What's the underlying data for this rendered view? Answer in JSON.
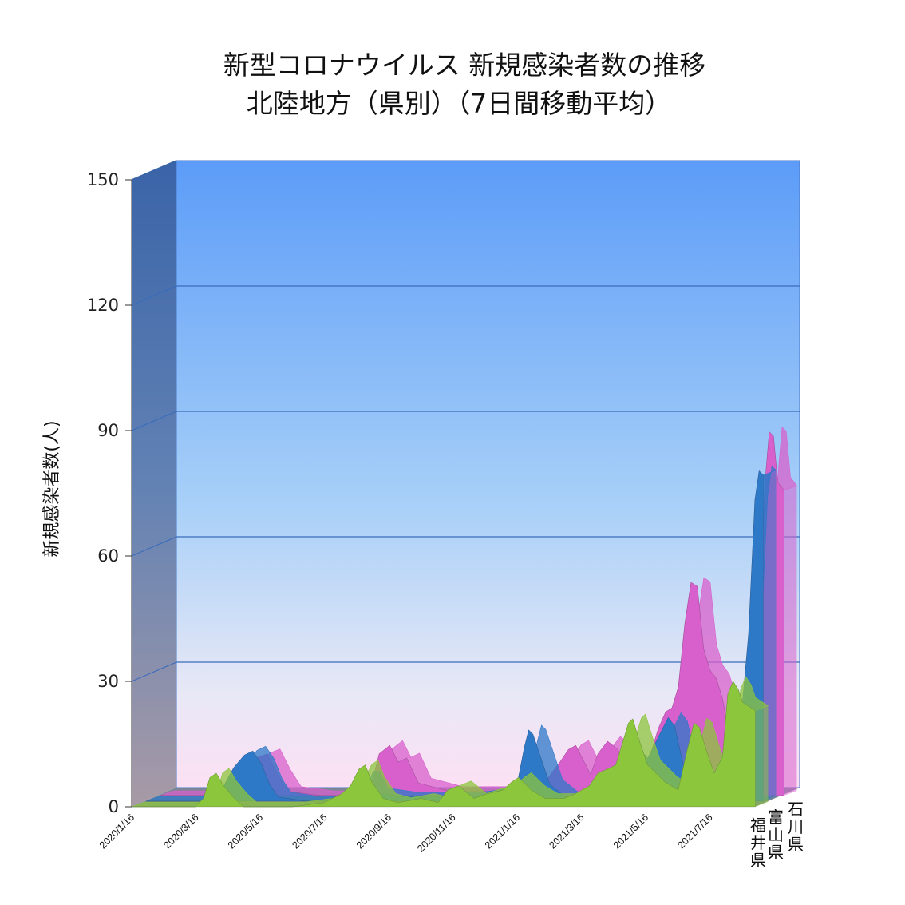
{
  "chart_data": {
    "type": "area",
    "title": "新型コロナウイルス 新規感染者数の推移",
    "subtitle": "北陸地方（県別）（7日間移動平均）",
    "ylabel": "新規感染者数(人)",
    "xlabel": "",
    "ylim": [
      0,
      150
    ],
    "yticks": [
      0,
      30,
      60,
      90,
      120,
      150
    ],
    "grid": true,
    "three_d": true,
    "x_tick_labels": [
      "2020/1/16",
      "2020/3/16",
      "2020/5/16",
      "2020/7/16",
      "2020/9/16",
      "2020/11/16",
      "2021/1/16",
      "2021/3/16",
      "2021/5/16",
      "2021/7/16"
    ],
    "colors": {
      "石川県": "#d860cc",
      "富山県": "#2e78c8",
      "福井県": "#8cc63c"
    },
    "series": [
      {
        "name": "石川県",
        "points": [
          [
            "2020/1/16",
            0
          ],
          [
            "2020/3/16",
            0
          ],
          [
            "2020/4/1",
            3
          ],
          [
            "2020/4/16",
            9
          ],
          [
            "2020/4/26",
            10
          ],
          [
            "2020/5/6",
            5
          ],
          [
            "2020/5/16",
            1
          ],
          [
            "2020/6/16",
            0
          ],
          [
            "2020/7/16",
            0
          ],
          [
            "2020/8/1",
            1
          ],
          [
            "2020/8/10",
            10
          ],
          [
            "2020/8/20",
            12
          ],
          [
            "2020/8/28",
            8
          ],
          [
            "2020/9/5",
            9
          ],
          [
            "2020/9/16",
            3
          ],
          [
            "2020/10/16",
            1
          ],
          [
            "2020/11/16",
            1
          ],
          [
            "2020/12/16",
            1
          ],
          [
            "2021/1/5",
            3
          ],
          [
            "2021/1/16",
            4
          ],
          [
            "2021/1/28",
            8
          ],
          [
            "2021/2/5",
            11
          ],
          [
            "2021/2/12",
            12
          ],
          [
            "2021/2/18",
            9
          ],
          [
            "2021/2/26",
            5
          ],
          [
            "2021/3/5",
            10
          ],
          [
            "2021/3/14",
            13
          ],
          [
            "2021/3/24",
            11
          ],
          [
            "2021/4/3",
            4
          ],
          [
            "2021/4/16",
            5
          ],
          [
            "2021/4/25",
            11
          ],
          [
            "2021/5/1",
            16
          ],
          [
            "2021/5/8",
            20
          ],
          [
            "2021/5/14",
            21
          ],
          [
            "2021/5/20",
            26
          ],
          [
            "2021/5/26",
            41
          ],
          [
            "2021/6/1",
            51
          ],
          [
            "2021/6/7",
            50
          ],
          [
            "2021/6/13",
            35
          ],
          [
            "2021/6/19",
            30
          ],
          [
            "2021/6/25",
            28
          ],
          [
            "2021/7/1",
            23
          ],
          [
            "2021/7/7",
            14
          ],
          [
            "2021/7/13",
            8
          ],
          [
            "2021/7/18",
            4
          ],
          [
            "2021/7/24",
            8
          ],
          [
            "2021/7/31",
            20
          ],
          [
            "2021/8/5",
            45
          ],
          [
            "2021/8/10",
            75
          ],
          [
            "2021/8/14",
            87
          ],
          [
            "2021/8/18",
            86
          ],
          [
            "2021/8/22",
            75
          ],
          [
            "2021/8/28",
            73
          ]
        ]
      },
      {
        "name": "富山県",
        "points": [
          [
            "2020/1/16",
            0
          ],
          [
            "2020/3/16",
            0
          ],
          [
            "2020/3/28",
            3
          ],
          [
            "2020/4/8",
            8
          ],
          [
            "2020/4/18",
            11
          ],
          [
            "2020/4/26",
            12
          ],
          [
            "2020/5/4",
            9
          ],
          [
            "2020/5/12",
            4
          ],
          [
            "2020/5/20",
            1
          ],
          [
            "2020/6/16",
            0
          ],
          [
            "2020/7/16",
            0
          ],
          [
            "2020/7/28",
            1
          ],
          [
            "2020/8/6",
            6
          ],
          [
            "2020/8/12",
            6
          ],
          [
            "2020/8/20",
            2
          ],
          [
            "2020/9/16",
            1
          ],
          [
            "2020/10/16",
            1
          ],
          [
            "2020/11/16",
            1
          ],
          [
            "2020/12/16",
            2
          ],
          [
            "2021/1/1",
            4
          ],
          [
            "2021/1/8",
            13
          ],
          [
            "2021/1/12",
            17
          ],
          [
            "2021/1/16",
            16
          ],
          [
            "2021/1/24",
            10
          ],
          [
            "2021/2/1",
            4
          ],
          [
            "2021/2/16",
            1
          ],
          [
            "2021/3/16",
            1
          ],
          [
            "2021/4/1",
            3
          ],
          [
            "2021/4/12",
            8
          ],
          [
            "2021/4/20",
            10
          ],
          [
            "2021/4/28",
            7
          ],
          [
            "2021/5/8",
            12
          ],
          [
            "2021/5/16",
            16
          ],
          [
            "2021/5/24",
            20
          ],
          [
            "2021/5/30",
            18
          ],
          [
            "2021/6/7",
            9
          ],
          [
            "2021/6/16",
            3
          ],
          [
            "2021/7/1",
            2
          ],
          [
            "2021/7/16",
            3
          ],
          [
            "2021/7/24",
            7
          ],
          [
            "2021/8/1",
            20
          ],
          [
            "2021/8/8",
            40
          ],
          [
            "2021/8/14",
            72
          ],
          [
            "2021/8/18",
            79
          ],
          [
            "2021/8/22",
            78
          ]
        ]
      },
      {
        "name": "福井県",
        "points": [
          [
            "2020/1/16",
            0
          ],
          [
            "2020/3/16",
            0
          ],
          [
            "2020/3/24",
            2
          ],
          [
            "2020/3/30",
            7
          ],
          [
            "2020/4/5",
            8
          ],
          [
            "2020/4/12",
            5
          ],
          [
            "2020/4/22",
            2
          ],
          [
            "2020/5/1",
            0
          ],
          [
            "2020/6/16",
            0
          ],
          [
            "2020/7/16",
            1
          ],
          [
            "2020/7/24",
            2
          ],
          [
            "2020/8/1",
            3
          ],
          [
            "2020/8/10",
            5
          ],
          [
            "2020/8/18",
            9
          ],
          [
            "2020/8/24",
            10
          ],
          [
            "2020/8/30",
            6
          ],
          [
            "2020/9/10",
            2
          ],
          [
            "2020/9/24",
            1
          ],
          [
            "2020/10/16",
            2
          ],
          [
            "2020/11/1",
            1
          ],
          [
            "2020/11/10",
            4
          ],
          [
            "2020/11/20",
            5
          ],
          [
            "2020/12/5",
            2
          ],
          [
            "2020/12/16",
            3
          ],
          [
            "2021/1/1",
            4
          ],
          [
            "2021/1/10",
            6
          ],
          [
            "2021/1/16",
            7
          ],
          [
            "2021/1/28",
            4
          ],
          [
            "2021/2/10",
            2
          ],
          [
            "2021/2/28",
            2
          ],
          [
            "2021/3/10",
            3
          ],
          [
            "2021/3/24",
            5
          ],
          [
            "2021/4/1",
            8
          ],
          [
            "2021/4/10",
            9
          ],
          [
            "2021/4/18",
            10
          ],
          [
            "2021/4/24",
            15
          ],
          [
            "2021/4/30",
            20
          ],
          [
            "2021/5/4",
            21
          ],
          [
            "2021/5/10",
            16
          ],
          [
            "2021/5/18",
            10
          ],
          [
            "2021/5/26",
            8
          ],
          [
            "2021/6/3",
            6
          ],
          [
            "2021/6/16",
            4
          ],
          [
            "2021/6/24",
            13
          ],
          [
            "2021/7/1",
            20
          ],
          [
            "2021/7/6",
            19
          ],
          [
            "2021/7/12",
            14
          ],
          [
            "2021/7/20",
            8
          ],
          [
            "2021/7/28",
            12
          ],
          [
            "2021/8/2",
            27
          ],
          [
            "2021/8/7",
            30
          ],
          [
            "2021/8/12",
            28
          ],
          [
            "2021/8/16",
            25
          ],
          [
            "2021/8/22",
            24
          ],
          [
            "2021/8/28",
            23
          ]
        ]
      }
    ],
    "depth_labels": [
      "福井県",
      "富山県",
      "石川県"
    ]
  }
}
